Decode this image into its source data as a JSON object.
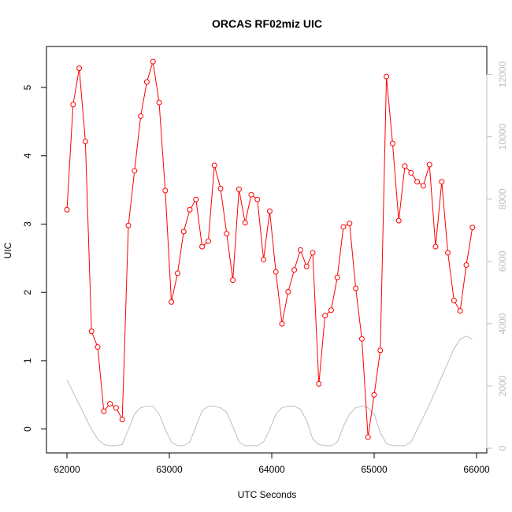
{
  "chart_data": {
    "type": "line",
    "title": "ORCAS RF02miz UIC",
    "xlabel": "UTC Seconds",
    "ylabel": "UIC",
    "xlim": [
      61800,
      66100
    ],
    "ylim": [
      -0.35,
      5.6
    ],
    "y2lim": [
      -150,
      12900
    ],
    "x_ticks": [
      62000,
      63000,
      64000,
      65000,
      66000
    ],
    "y_ticks": [
      0,
      1,
      2,
      3,
      4,
      5
    ],
    "y2_ticks": [
      0,
      2000,
      4000,
      6000,
      8000,
      10000,
      12000
    ],
    "grid": false,
    "series": [
      {
        "color": "#ff0000",
        "marker": "open-circle",
        "axis": "left",
        "x": [
          62000,
          62060,
          62120,
          62180,
          62240,
          62300,
          62360,
          62420,
          62480,
          62540,
          62600,
          62660,
          62720,
          62780,
          62840,
          62900,
          62960,
          63020,
          63080,
          63140,
          63200,
          63260,
          63320,
          63380,
          63440,
          63500,
          63560,
          63620,
          63680,
          63740,
          63800,
          63860,
          63920,
          63980,
          64040,
          64100,
          64160,
          64220,
          64280,
          64340,
          64400,
          64460,
          64520,
          64580,
          64640,
          64700,
          64760,
          64820,
          64880,
          64940,
          65000,
          65060,
          65120,
          65180,
          65240,
          65300,
          65360,
          65420,
          65480,
          65540,
          65600,
          65660,
          65720,
          65780,
          65840,
          65900,
          65960
        ],
        "y": [
          3.21,
          4.75,
          5.28,
          4.21,
          1.43,
          1.2,
          0.26,
          0.37,
          0.31,
          0.14,
          2.98,
          3.78,
          4.58,
          5.08,
          5.38,
          4.78,
          3.49,
          1.86,
          2.28,
          2.89,
          3.21,
          3.36,
          2.67,
          2.75,
          3.86,
          3.52,
          2.86,
          2.18,
          3.51,
          3.02,
          3.43,
          3.36,
          2.48,
          3.19,
          2.3,
          1.54,
          2.01,
          2.33,
          2.62,
          2.38,
          2.58,
          0.66,
          1.66,
          1.74,
          2.22,
          2.96,
          3.01,
          2.06,
          1.32,
          -0.12,
          0.5,
          1.15,
          5.16,
          4.18,
          3.05,
          3.85,
          3.75,
          3.62,
          3.56,
          3.87,
          2.67,
          3.62,
          2.58,
          1.88,
          1.73,
          2.4,
          2.95
        ]
      },
      {
        "color": "#bebebe",
        "marker": "none",
        "axis": "right",
        "x": [
          62000,
          62060,
          62120,
          62180,
          62240,
          62300,
          62360,
          62420,
          62480,
          62540,
          62600,
          62660,
          62720,
          62780,
          62840,
          62900,
          62960,
          63020,
          63080,
          63140,
          63200,
          63260,
          63320,
          63380,
          63440,
          63500,
          63560,
          63620,
          63680,
          63740,
          63800,
          63860,
          63920,
          63980,
          64040,
          64100,
          64160,
          64220,
          64280,
          64340,
          64400,
          64460,
          64520,
          64580,
          64640,
          64700,
          64760,
          64820,
          64880,
          64940,
          65000,
          65060,
          65120,
          65180,
          65240,
          65300,
          65360,
          65420,
          65480,
          65540,
          65600,
          65660,
          65720,
          65780,
          65840,
          65900,
          65960
        ],
        "y": [
          2200,
          1800,
          1400,
          1000,
          600,
          300,
          120,
          80,
          80,
          120,
          600,
          1100,
          1300,
          1350,
          1350,
          1100,
          600,
          200,
          80,
          80,
          200,
          700,
          1200,
          1350,
          1350,
          1300,
          1150,
          700,
          200,
          80,
          80,
          80,
          200,
          600,
          1100,
          1300,
          1350,
          1350,
          1250,
          900,
          300,
          120,
          80,
          80,
          200,
          700,
          1100,
          1300,
          1350,
          1300,
          1100,
          500,
          150,
          80,
          80,
          80,
          200,
          600,
          1000,
          1400,
          1850,
          2300,
          2750,
          3200,
          3500,
          3600,
          3500
        ]
      }
    ]
  }
}
